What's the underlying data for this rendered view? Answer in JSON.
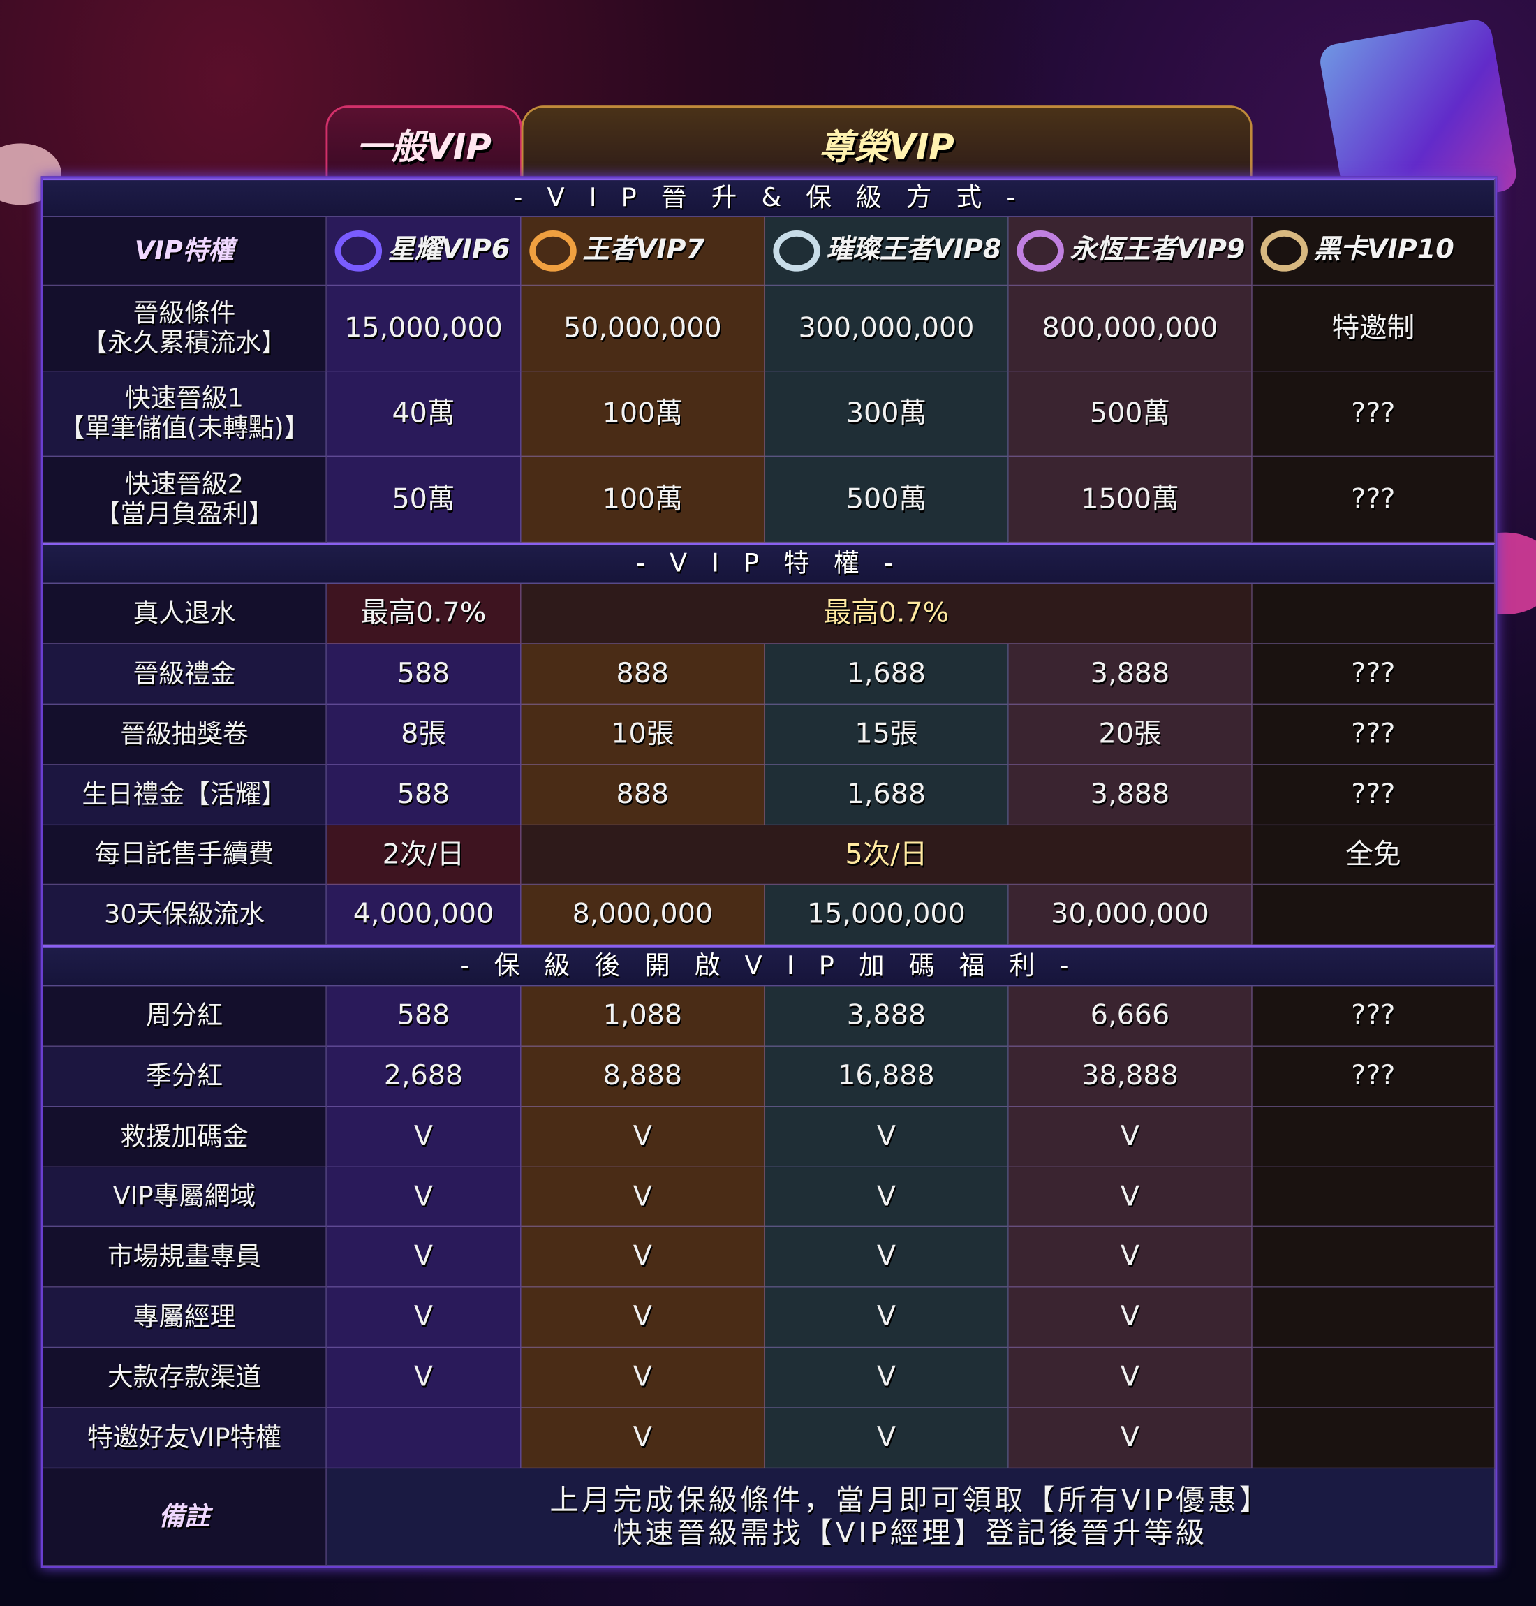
{
  "tabs": {
    "normal": "一般VIP",
    "honor": "尊榮VIP"
  },
  "sections": {
    "upgrade": "- V I P 晉 升 & 保 級 方 式 -",
    "privileges": "- V I P 特 權 -",
    "bonus": "- 保 級 後 開 啟 V I P 加 碼 福 利 -"
  },
  "header": {
    "corner": "VIP特權",
    "levels": [
      {
        "name": "星耀VIP6",
        "icon": "purple-ring-icon",
        "color": "#7a5cff"
      },
      {
        "name": "王者VIP7",
        "icon": "gold-ring-icon",
        "color": "#f0a040"
      },
      {
        "name": "璀璨王者VIP8",
        "icon": "silver-ring-icon",
        "color": "#c8dce8"
      },
      {
        "name": "永恆王者VIP9",
        "icon": "iridescent-ring-icon",
        "color": "#c080e0"
      },
      {
        "name": "黑卡VIP10",
        "icon": "black-card-ring-icon",
        "color": "#d8b880"
      }
    ]
  },
  "upgrade_rows": [
    {
      "label": "晉級條件\n【永久累積流水】",
      "cells": [
        "15,000,000",
        "50,000,000",
        "300,000,000",
        "800,000,000",
        "特邀制"
      ]
    },
    {
      "label": "快速晉級1\n【單筆儲值(未轉點)】",
      "cells": [
        "40萬",
        "100萬",
        "300萬",
        "500萬",
        "???"
      ]
    },
    {
      "label": "快速晉級2\n【當月負盈利】",
      "cells": [
        "50萬",
        "100萬",
        "500萬",
        "1500萬",
        "???"
      ]
    }
  ],
  "privilege_rows": [
    {
      "label": "真人退水",
      "vip6": "最高0.7%",
      "merged": "最高0.7%",
      "vip10": ""
    },
    {
      "label": "晉級禮金",
      "cells": [
        "588",
        "888",
        "1,688",
        "3,888",
        "???"
      ]
    },
    {
      "label": "晉級抽獎卷",
      "cells": [
        "8張",
        "10張",
        "15張",
        "20張",
        "???"
      ]
    },
    {
      "label": "生日禮金【活耀】",
      "cells": [
        "588",
        "888",
        "1,688",
        "3,888",
        "???"
      ]
    },
    {
      "label": "每日託售手續費",
      "vip6": "2次/日",
      "merged": "5次/日",
      "vip10": "全免"
    },
    {
      "label": "30天保級流水",
      "cells": [
        "4,000,000",
        "8,000,000",
        "15,000,000",
        "30,000,000",
        ""
      ]
    }
  ],
  "bonus_rows": [
    {
      "label": "周分紅",
      "cells": [
        "588",
        "1,088",
        "3,888",
        "6,666",
        "???"
      ]
    },
    {
      "label": "季分紅",
      "cells": [
        "2,688",
        "8,888",
        "16,888",
        "38,888",
        "???"
      ]
    },
    {
      "label": "救援加碼金",
      "cells": [
        "V",
        "V",
        "V",
        "V",
        ""
      ]
    },
    {
      "label": "VIP專屬網域",
      "cells": [
        "V",
        "V",
        "V",
        "V",
        ""
      ]
    },
    {
      "label": "市場規畫專員",
      "cells": [
        "V",
        "V",
        "V",
        "V",
        ""
      ]
    },
    {
      "label": "專屬經理",
      "cells": [
        "V",
        "V",
        "V",
        "V",
        ""
      ]
    },
    {
      "label": "大款存款渠道",
      "cells": [
        "V",
        "V",
        "V",
        "V",
        ""
      ]
    },
    {
      "label": "特邀好友VIP特權",
      "cells": [
        "",
        "V",
        "V",
        "V",
        ""
      ]
    }
  ],
  "remarks": {
    "label": "備註",
    "line1": "上月完成保級條件，當月即可領取【所有VIP優惠】",
    "line2": "快速晉級需找【VIP經理】登記後晉升等級"
  }
}
